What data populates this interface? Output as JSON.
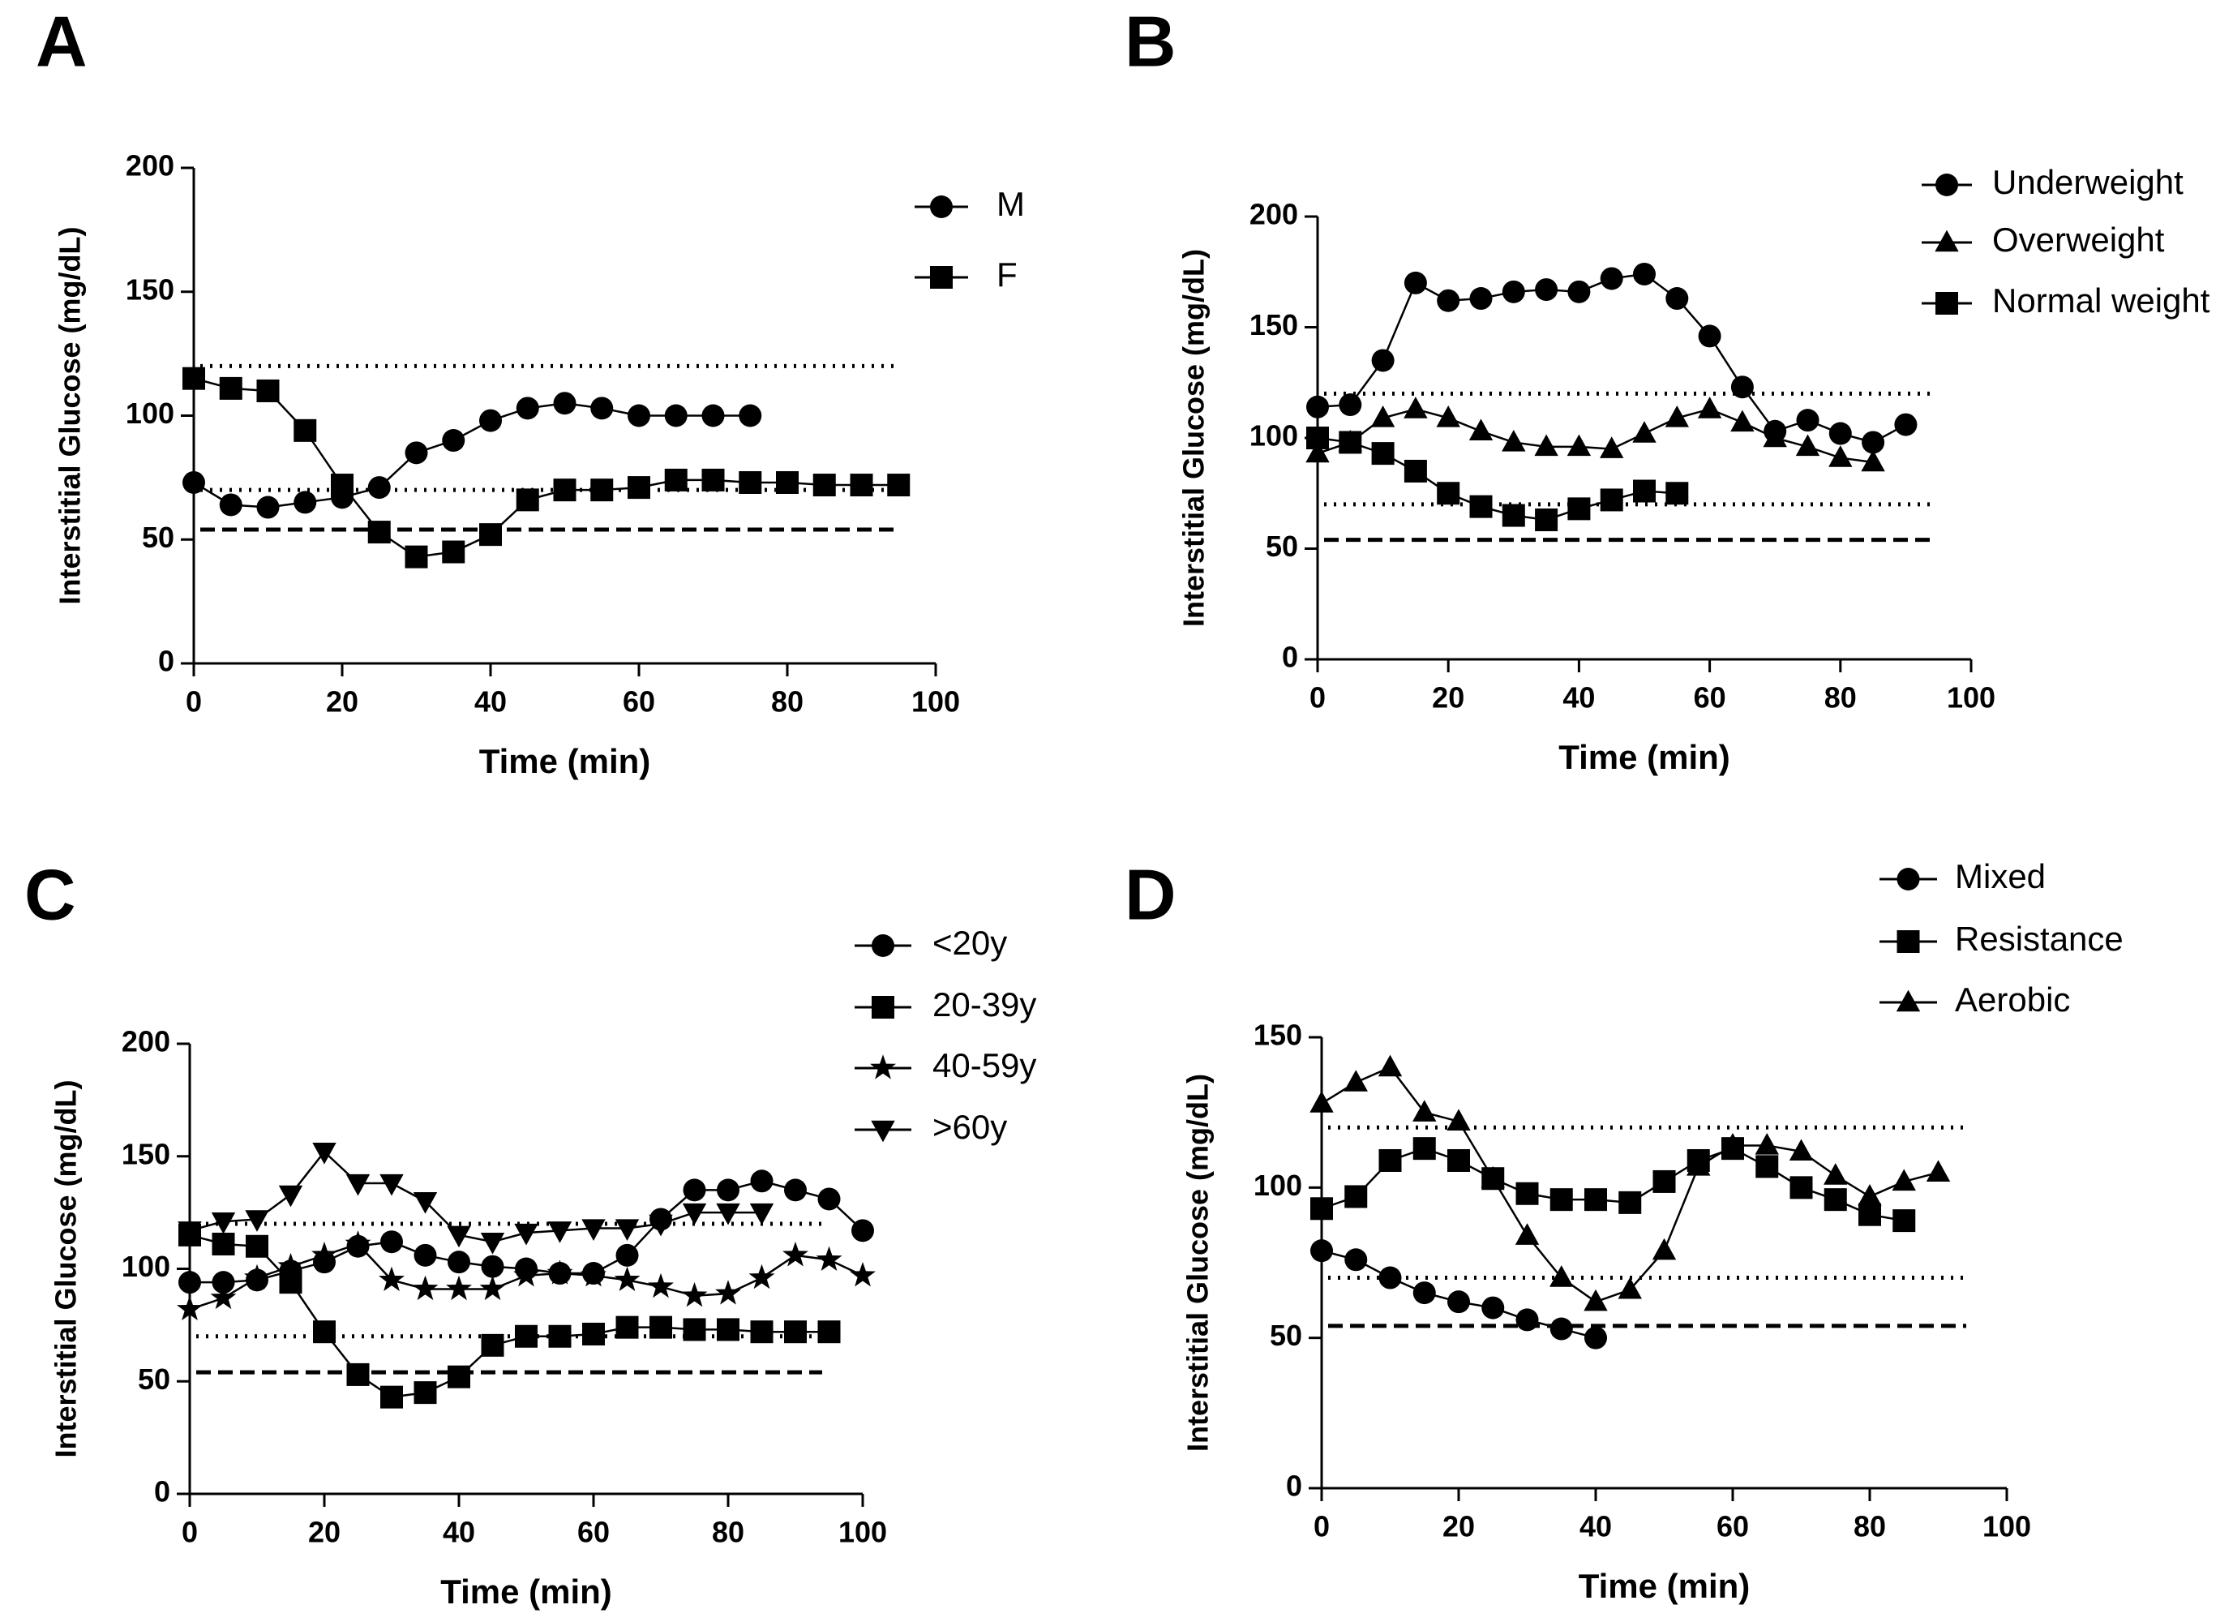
{
  "chart_data": [
    {
      "type": "line",
      "panel": "A",
      "xlabel": "Time (min)",
      "ylabel": "Interstitial Glucose (mg/dL)",
      "xlim": [
        0,
        100
      ],
      "xticks": [
        0,
        20,
        40,
        60,
        80,
        100
      ],
      "ylim": [
        0,
        200
      ],
      "yticks": [
        0,
        50,
        100,
        150,
        200
      ],
      "legend": "upper right",
      "reference_lines": [
        {
          "y": 120,
          "style": "dotted"
        },
        {
          "y": 70,
          "style": "dotted"
        },
        {
          "y": 54,
          "style": "dashed"
        }
      ],
      "series": [
        {
          "name": "M",
          "marker": "circle",
          "color": "#000000",
          "x": [
            0,
            5,
            10,
            15,
            20,
            25,
            30,
            35,
            40,
            45,
            50,
            55,
            60,
            65,
            70,
            75
          ],
          "values": [
            73,
            64,
            63,
            65,
            67,
            71,
            85,
            90,
            98,
            103,
            105,
            103,
            100,
            100,
            100,
            100
          ]
        },
        {
          "name": "F",
          "marker": "square",
          "color": "#000000",
          "x": [
            0,
            5,
            10,
            15,
            20,
            25,
            30,
            35,
            40,
            45,
            50,
            55,
            60,
            65,
            70,
            75,
            80,
            85,
            90,
            95
          ],
          "values": [
            115,
            111,
            110,
            94,
            72,
            53,
            43,
            45,
            52,
            66,
            70,
            70,
            71,
            74,
            74,
            73,
            73,
            72,
            72,
            72
          ]
        }
      ]
    },
    {
      "type": "line",
      "panel": "B",
      "xlabel": "Time (min)",
      "ylabel": "Interstitial Glucose (mg/dL)",
      "xlim": [
        0,
        100
      ],
      "xticks": [
        0,
        20,
        40,
        60,
        80,
        100
      ],
      "ylim": [
        0,
        200
      ],
      "yticks": [
        0,
        50,
        100,
        150,
        200
      ],
      "legend": "upper right",
      "reference_lines": [
        {
          "y": 120,
          "style": "dotted"
        },
        {
          "y": 70,
          "style": "dotted"
        },
        {
          "y": 54,
          "style": "dashed"
        }
      ],
      "series": [
        {
          "name": "Underweight",
          "marker": "circle",
          "color": "#000000",
          "x": [
            0,
            5,
            10,
            15,
            20,
            25,
            30,
            35,
            40,
            45,
            50,
            55,
            60,
            65,
            70,
            75,
            80,
            85,
            90
          ],
          "values": [
            114,
            115,
            135,
            170,
            162,
            163,
            166,
            167,
            166,
            172,
            174,
            163,
            146,
            123,
            103,
            108,
            102,
            98,
            106
          ]
        },
        {
          "name": "Overweight",
          "marker": "triangle",
          "color": "#000000",
          "x": [
            0,
            5,
            10,
            15,
            20,
            25,
            30,
            35,
            40,
            45,
            50,
            55,
            60,
            65,
            70,
            75,
            80,
            85
          ],
          "values": [
            93,
            98,
            109,
            113,
            109,
            103,
            98,
            96,
            96,
            95,
            102,
            109,
            113,
            107,
            100,
            96,
            91,
            89
          ]
        },
        {
          "name": "Normal weight",
          "marker": "square",
          "color": "#000000",
          "x": [
            0,
            5,
            10,
            15,
            20,
            25,
            30,
            35,
            40,
            45,
            50,
            55
          ],
          "values": [
            100,
            98,
            93,
            85,
            75,
            69,
            65,
            63,
            68,
            72,
            76,
            75
          ]
        }
      ]
    },
    {
      "type": "line",
      "panel": "C",
      "xlabel": "Time (min)",
      "ylabel": "Interstitial Glucose (mg/dL)",
      "xlim": [
        0,
        100
      ],
      "xticks": [
        0,
        20,
        40,
        60,
        80,
        100
      ],
      "ylim": [
        0,
        200
      ],
      "yticks": [
        0,
        50,
        100,
        150,
        200
      ],
      "legend": "upper right",
      "reference_lines": [
        {
          "y": 120,
          "style": "dotted"
        },
        {
          "y": 70,
          "style": "dotted"
        },
        {
          "y": 54,
          "style": "dashed"
        }
      ],
      "series": [
        {
          "name": "<20y",
          "marker": "circle",
          "color": "#000000",
          "x": [
            0,
            5,
            10,
            15,
            20,
            25,
            30,
            35,
            40,
            45,
            50,
            55,
            60,
            65,
            70,
            75,
            80,
            85,
            90,
            95,
            100
          ],
          "values": [
            94,
            94,
            95,
            99,
            103,
            110,
            112,
            106,
            103,
            101,
            100,
            98,
            98,
            106,
            122,
            135,
            135,
            139,
            135,
            131,
            117
          ]
        },
        {
          "name": "20-39y",
          "marker": "square",
          "color": "#000000",
          "x": [
            0,
            5,
            10,
            15,
            20,
            25,
            30,
            35,
            40,
            45,
            50,
            55,
            60,
            65,
            70,
            75,
            80,
            85,
            90,
            95
          ],
          "values": [
            115,
            111,
            110,
            94,
            72,
            53,
            43,
            45,
            52,
            66,
            70,
            70,
            71,
            74,
            74,
            73,
            73,
            72,
            72,
            72
          ]
        },
        {
          "name": "40-59y",
          "marker": "star",
          "color": "#000000",
          "x": [
            0,
            5,
            10,
            15,
            20,
            25,
            30,
            35,
            40,
            45,
            50,
            55,
            60,
            65,
            70,
            75,
            80,
            85,
            90,
            95,
            100
          ],
          "values": [
            82,
            87,
            96,
            101,
            106,
            111,
            95,
            91,
            91,
            91,
            97,
            98,
            97,
            95,
            92,
            88,
            89,
            96,
            106,
            104,
            97
          ]
        },
        {
          "name": ">60y",
          "marker": "triangle-down",
          "color": "#000000",
          "x": [
            0,
            5,
            10,
            15,
            20,
            25,
            30,
            35,
            40,
            45,
            50,
            55,
            60,
            65,
            70,
            75,
            80,
            85
          ],
          "values": [
            117,
            121,
            122,
            133,
            152,
            138,
            138,
            130,
            115,
            112,
            116,
            117,
            118,
            118,
            120,
            125,
            125,
            125
          ]
        }
      ]
    },
    {
      "type": "line",
      "panel": "D",
      "xlabel": "Time (min)",
      "ylabel": "Interstitial Glucose (mg/dL)",
      "xlim": [
        0,
        100
      ],
      "xticks": [
        0,
        20,
        40,
        60,
        80,
        100
      ],
      "ylim": [
        0,
        150
      ],
      "yticks": [
        0,
        50,
        100,
        150
      ],
      "legend": "upper right",
      "reference_lines": [
        {
          "y": 120,
          "style": "dotted"
        },
        {
          "y": 70,
          "style": "dotted"
        },
        {
          "y": 54,
          "style": "dashed"
        }
      ],
      "series": [
        {
          "name": "Mixed",
          "marker": "circle",
          "color": "#000000",
          "x": [
            0,
            5,
            10,
            15,
            20,
            25,
            30,
            35,
            40
          ],
          "values": [
            79,
            76,
            70,
            65,
            62,
            60,
            56,
            53,
            50
          ]
        },
        {
          "name": "Resistance",
          "marker": "square",
          "color": "#000000",
          "x": [
            0,
            5,
            10,
            15,
            20,
            25,
            30,
            35,
            40,
            45,
            50,
            55,
            60,
            65,
            70,
            75,
            80,
            85
          ],
          "values": [
            93,
            97,
            109,
            113,
            109,
            103,
            98,
            96,
            96,
            95,
            102,
            109,
            113,
            107,
            100,
            96,
            91,
            89
          ]
        },
        {
          "name": "Aerobic",
          "marker": "triangle",
          "color": "#000000",
          "x": [
            0,
            5,
            10,
            15,
            20,
            25,
            30,
            35,
            40,
            45,
            50,
            55,
            60,
            65,
            70,
            75,
            80,
            85,
            90
          ],
          "values": [
            128,
            135,
            140,
            125,
            122,
            103,
            84,
            70,
            62,
            66,
            79,
            107,
            114,
            114,
            112,
            104,
            97,
            102,
            105
          ]
        }
      ]
    }
  ]
}
